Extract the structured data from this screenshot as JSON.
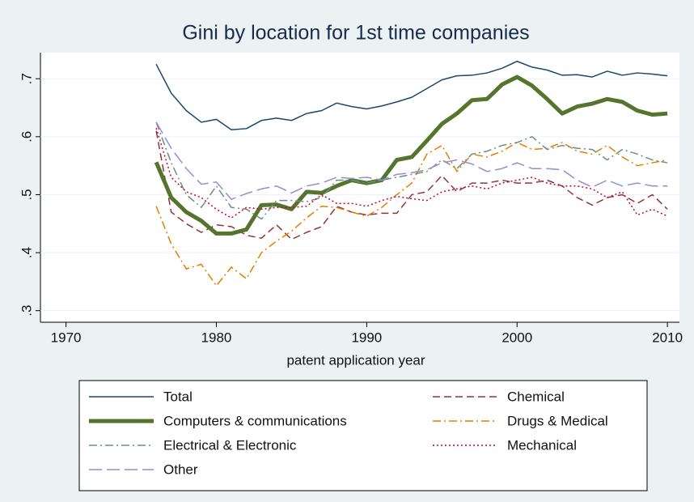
{
  "chart_data": {
    "type": "line",
    "title": "Gini by location for 1st time companies",
    "x_label": "patent application year",
    "x": [
      1976,
      1977,
      1978,
      1979,
      1980,
      1981,
      1982,
      1983,
      1984,
      1985,
      1986,
      1987,
      1988,
      1989,
      1990,
      1991,
      1992,
      1993,
      1994,
      1995,
      1996,
      1997,
      1998,
      1999,
      2000,
      2001,
      2002,
      2003,
      2004,
      2005,
      2006,
      2007,
      2008,
      2009,
      2010
    ],
    "xlim": [
      1968.3,
      2010.8
    ],
    "xticks": [
      1970,
      1980,
      1990,
      2000,
      2010
    ],
    "ylim": [
      0.28,
      0.745
    ],
    "yticks": [
      {
        "value": 0.3,
        "label": ".3"
      },
      {
        "value": 0.4,
        "label": ".4"
      },
      {
        "value": 0.5,
        "label": ".5"
      },
      {
        "value": 0.6,
        "label": ".6"
      },
      {
        "value": 0.7,
        "label": ".7"
      }
    ],
    "grid": true,
    "series": [
      {
        "name": "Total",
        "color": "#1a476f",
        "style": "solid",
        "values": [
          0.725,
          0.675,
          0.645,
          0.625,
          0.63,
          0.612,
          0.614,
          0.628,
          0.632,
          0.628,
          0.64,
          0.645,
          0.658,
          0.652,
          0.648,
          0.653,
          0.66,
          0.668,
          0.683,
          0.698,
          0.705,
          0.706,
          0.71,
          0.718,
          0.73,
          0.72,
          0.715,
          0.706,
          0.707,
          0.703,
          0.713,
          0.706,
          0.71,
          0.708,
          0.705
        ]
      },
      {
        "name": "Chemical",
        "color": "#90353b",
        "style": "dashed",
        "values": [
          0.61,
          0.47,
          0.45,
          0.435,
          0.448,
          0.445,
          0.43,
          0.425,
          0.448,
          0.423,
          0.435,
          0.445,
          0.48,
          0.47,
          0.465,
          0.468,
          0.468,
          0.5,
          0.505,
          0.533,
          0.505,
          0.52,
          0.52,
          0.525,
          0.52,
          0.52,
          0.525,
          0.515,
          0.495,
          0.482,
          0.495,
          0.5,
          0.485,
          0.5,
          0.475
        ]
      },
      {
        "name": "Computers & communications",
        "color": "#55752f",
        "style": "thick",
        "values": [
          0.556,
          0.495,
          0.47,
          0.455,
          0.433,
          0.433,
          0.44,
          0.482,
          0.483,
          0.475,
          0.505,
          0.503,
          0.515,
          0.525,
          0.52,
          0.525,
          0.56,
          0.565,
          0.593,
          0.622,
          0.64,
          0.663,
          0.665,
          0.69,
          0.703,
          0.688,
          0.665,
          0.64,
          0.652,
          0.657,
          0.665,
          0.66,
          0.645,
          0.638,
          0.64
        ]
      },
      {
        "name": "Drugs & Medical",
        "color": "#e37e00",
        "style": "dashdot",
        "values": [
          0.48,
          0.415,
          0.372,
          0.38,
          0.343,
          0.375,
          0.355,
          0.4,
          0.42,
          0.437,
          0.46,
          0.48,
          0.478,
          0.47,
          0.463,
          0.478,
          0.5,
          0.52,
          0.57,
          0.585,
          0.54,
          0.57,
          0.565,
          0.575,
          0.59,
          0.578,
          0.58,
          0.59,
          0.575,
          0.57,
          0.585,
          0.565,
          0.55,
          0.555,
          0.56
        ]
      },
      {
        "name": "Electrical & Electronic",
        "color": "#6e8e84",
        "style": "dashdot",
        "values": [
          0.625,
          0.555,
          0.5,
          0.478,
          0.515,
          0.478,
          0.475,
          0.458,
          0.49,
          0.49,
          0.488,
          0.495,
          0.525,
          0.525,
          0.52,
          0.525,
          0.53,
          0.535,
          0.54,
          0.56,
          0.545,
          0.57,
          0.575,
          0.585,
          0.59,
          0.6,
          0.578,
          0.585,
          0.58,
          0.578,
          0.56,
          0.578,
          0.57,
          0.56,
          0.555
        ]
      },
      {
        "name": "Mechanical",
        "color": "#c10534",
        "style": "dotted",
        "values": [
          0.615,
          0.53,
          0.505,
          0.495,
          0.475,
          0.46,
          0.478,
          0.475,
          0.478,
          0.478,
          0.48,
          0.5,
          0.485,
          0.485,
          0.48,
          0.49,
          0.497,
          0.493,
          0.49,
          0.505,
          0.51,
          0.515,
          0.51,
          0.52,
          0.525,
          0.53,
          0.52,
          0.515,
          0.515,
          0.51,
          0.495,
          0.505,
          0.465,
          0.475,
          0.463
        ]
      },
      {
        "name": "Other",
        "color": "#938dd2",
        "style": "longdash",
        "values": [
          0.625,
          0.58,
          0.545,
          0.518,
          0.522,
          0.492,
          0.502,
          0.51,
          0.515,
          0.503,
          0.515,
          0.52,
          0.53,
          0.528,
          0.53,
          0.525,
          0.535,
          0.538,
          0.543,
          0.555,
          0.56,
          0.553,
          0.54,
          0.545,
          0.555,
          0.545,
          0.545,
          0.543,
          0.525,
          0.513,
          0.525,
          0.515,
          0.52,
          0.515,
          0.515
        ]
      }
    ]
  }
}
